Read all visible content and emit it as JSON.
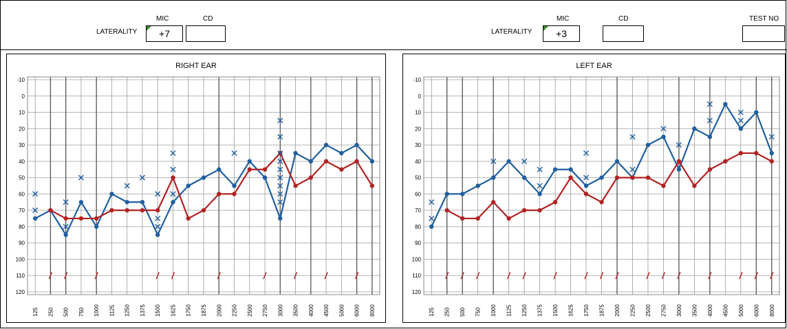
{
  "header": {
    "right": {
      "mic_label": "MIC",
      "cd_label": "CD",
      "laterality_label": "LATERALITY",
      "mic_value": "+7",
      "cd_value": ""
    },
    "left": {
      "mic_label": "MIC",
      "cd_label": "CD",
      "laterality_label": "LATERALITY",
      "mic_value": "+3",
      "cd_value": ""
    },
    "test_no_label": "TEST NO",
    "test_no_value": ""
  },
  "colors": {
    "blue": "#1f5fa0",
    "red": "#b22222",
    "grid": "#9a9a9a",
    "grid_major": "#555555"
  },
  "chart_data": [
    {
      "type": "line",
      "title": "RIGHT EAR",
      "x_ticks": [
        "125",
        "250",
        "500",
        "750",
        "1000",
        "1125",
        "1250",
        "1375",
        "1500",
        "1625",
        "1750",
        "1875",
        "2000",
        "2250",
        "2500",
        "2750",
        "3000",
        "3500",
        "4000",
        "4500",
        "5000",
        "6000",
        "8000"
      ],
      "y_ticks": [
        -10,
        0,
        10,
        20,
        30,
        40,
        50,
        60,
        70,
        80,
        90,
        100,
        110,
        120
      ],
      "ylim": [
        -10,
        120
      ],
      "y_inverted": true,
      "series": [
        {
          "color": "blue",
          "marker": "dot",
          "x": [
            "125",
            "250",
            "500",
            "750",
            "1000",
            "1125",
            "1250",
            "1375",
            "1500",
            "1625",
            "1750",
            "1875",
            "2000",
            "2250",
            "2500",
            "2750",
            "3000",
            "3500",
            "4000",
            "4500",
            "5000",
            "6000",
            "8000"
          ],
          "y": [
            75,
            70,
            85,
            65,
            80,
            60,
            65,
            65,
            85,
            65,
            55,
            50,
            45,
            55,
            40,
            50,
            75,
            35,
            40,
            30,
            35,
            30,
            40
          ]
        },
        {
          "color": "red",
          "marker": "dot",
          "x": [
            "250",
            "500",
            "750",
            "1000",
            "1125",
            "1250",
            "1375",
            "1500",
            "1625",
            "1750",
            "1875",
            "2000",
            "2250",
            "2500",
            "2750",
            "3000",
            "3500",
            "4000",
            "4500",
            "5000",
            "6000",
            "8000"
          ],
          "y": [
            70,
            75,
            75,
            75,
            70,
            70,
            70,
            70,
            50,
            75,
            70,
            60,
            60,
            45,
            45,
            35,
            55,
            50,
            40,
            45,
            40,
            55
          ]
        },
        {
          "color": "blue",
          "marker": "x",
          "points": [
            [
              "125",
              60
            ],
            [
              "125",
              70
            ],
            [
              "500",
              65
            ],
            [
              "500",
              80
            ],
            [
              "750",
              50
            ],
            [
              "1250",
              55
            ],
            [
              "1375",
              50
            ],
            [
              "1500",
              60
            ],
            [
              "1500",
              75
            ],
            [
              "1500",
              80
            ],
            [
              "1625",
              35
            ],
            [
              "1625",
              45
            ],
            [
              "1625",
              60
            ],
            [
              "2250",
              35
            ],
            [
              "3000",
              15
            ],
            [
              "3000",
              25
            ],
            [
              "3000",
              35
            ],
            [
              "3000",
              40
            ],
            [
              "3000",
              45
            ],
            [
              "3000",
              50
            ],
            [
              "3000",
              55
            ],
            [
              "3000",
              60
            ],
            [
              "3000",
              65
            ]
          ]
        },
        {
          "color": "red",
          "marker": "slash",
          "x": [
            "250",
            "500",
            "1000",
            "1500",
            "1625",
            "2000",
            "2750",
            "3500",
            "4500",
            "6000"
          ]
        }
      ]
    },
    {
      "type": "line",
      "title": "LEFT EAR",
      "x_ticks": [
        "125",
        "250",
        "500",
        "750",
        "1000",
        "1125",
        "1250",
        "1375",
        "1500",
        "1625",
        "1750",
        "1875",
        "2000",
        "2250",
        "2500",
        "2750",
        "3000",
        "3500",
        "4000",
        "4500",
        "5000",
        "6000",
        "8000"
      ],
      "y_ticks": [
        -10,
        0,
        10,
        20,
        30,
        40,
        50,
        60,
        70,
        80,
        90,
        100,
        110,
        120
      ],
      "ylim": [
        -10,
        120
      ],
      "y_inverted": true,
      "series": [
        {
          "color": "blue",
          "marker": "dot",
          "x": [
            "125",
            "250",
            "500",
            "750",
            "1000",
            "1125",
            "1250",
            "1375",
            "1500",
            "1625",
            "1750",
            "1875",
            "2000",
            "2250",
            "2500",
            "2750",
            "3000",
            "3500",
            "4000",
            "4500",
            "5000",
            "6000",
            "8000"
          ],
          "y": [
            80,
            60,
            60,
            55,
            50,
            40,
            50,
            60,
            45,
            45,
            55,
            50,
            40,
            50,
            30,
            25,
            45,
            20,
            25,
            5,
            20,
            10,
            35
          ]
        },
        {
          "color": "red",
          "marker": "dot",
          "x": [
            "250",
            "500",
            "750",
            "1000",
            "1125",
            "1250",
            "1375",
            "1500",
            "1625",
            "1750",
            "1875",
            "2000",
            "2250",
            "2500",
            "2750",
            "3000",
            "3500",
            "4000",
            "4500",
            "5000",
            "6000",
            "8000"
          ],
          "y": [
            70,
            75,
            75,
            65,
            75,
            70,
            70,
            65,
            50,
            60,
            65,
            50,
            50,
            50,
            55,
            40,
            55,
            45,
            40,
            35,
            35,
            40
          ]
        },
        {
          "color": "blue",
          "marker": "x",
          "points": [
            [
              "125",
              65
            ],
            [
              "125",
              75
            ],
            [
              "1000",
              40
            ],
            [
              "1250",
              40
            ],
            [
              "1375",
              45
            ],
            [
              "1375",
              55
            ],
            [
              "1750",
              35
            ],
            [
              "1750",
              50
            ],
            [
              "2250",
              25
            ],
            [
              "2250",
              45
            ],
            [
              "2750",
              20
            ],
            [
              "3000",
              30
            ],
            [
              "4000",
              5
            ],
            [
              "4000",
              15
            ],
            [
              "5000",
              10
            ],
            [
              "5000",
              15
            ],
            [
              "8000",
              25
            ]
          ]
        },
        {
          "color": "red",
          "marker": "slash",
          "x": [
            "250",
            "500",
            "750",
            "1125",
            "1250",
            "1500",
            "1750",
            "1875",
            "2000",
            "2500",
            "2750",
            "3000",
            "4000",
            "5000",
            "6000",
            "8000"
          ]
        }
      ]
    }
  ]
}
